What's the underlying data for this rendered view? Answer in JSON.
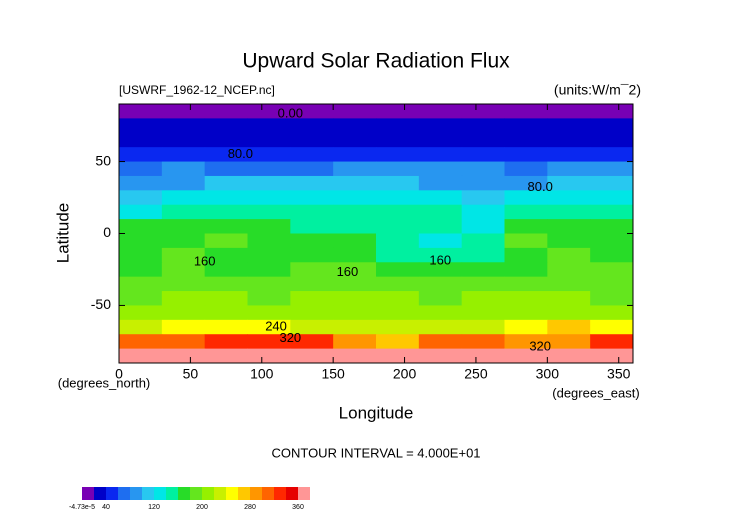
{
  "chart_data": {
    "type": "contour",
    "title": "Upward Solar Radiation Flux",
    "subtitle_left": "[USWRF_1962-12_NCEP.nc]",
    "subtitle_right": "(units:W/m¯2)",
    "x_label": "Longitude",
    "x_unit": "(degrees_east)",
    "y_label": "Latitude",
    "y_unit": "(degrees_north)",
    "footnote": "CONTOUR INTERVAL = 4.000E+01",
    "xlim": [
      0,
      360
    ],
    "xticks": [
      0,
      50,
      100,
      150,
      200,
      250,
      300,
      350
    ],
    "ylim": [
      -90,
      90
    ],
    "yticks": [
      -50,
      0,
      50
    ],
    "x": [
      15,
      45,
      75,
      105,
      135,
      165,
      195,
      225,
      255,
      285,
      315,
      345
    ],
    "y": [
      85,
      75,
      65,
      55,
      45,
      35,
      25,
      15,
      5,
      -5,
      -15,
      -25,
      -35,
      -45,
      -55,
      -65,
      -75,
      -85
    ],
    "z": [
      [
        0,
        0,
        0,
        0,
        0,
        0,
        0,
        0,
        0,
        0,
        0,
        0
      ],
      [
        30,
        30,
        30,
        30,
        30,
        30,
        30,
        30,
        30,
        30,
        30,
        30
      ],
      [
        30,
        30,
        30,
        30,
        30,
        30,
        30,
        30,
        30,
        30,
        30,
        30
      ],
      [
        50,
        50,
        50,
        50,
        50,
        50,
        50,
        50,
        50,
        50,
        50,
        50
      ],
      [
        70,
        80,
        70,
        70,
        70,
        90,
        90,
        90,
        90,
        70,
        80,
        90
      ],
      [
        90,
        90,
        100,
        110,
        110,
        110,
        100,
        90,
        90,
        90,
        100,
        110
      ],
      [
        110,
        120,
        130,
        130,
        120,
        130,
        130,
        120,
        110,
        120,
        130,
        130
      ],
      [
        130,
        140,
        150,
        140,
        150,
        150,
        150,
        140,
        130,
        140,
        150,
        140
      ],
      [
        170,
        160,
        170,
        160,
        150,
        150,
        140,
        140,
        130,
        170,
        160,
        170
      ],
      [
        170,
        170,
        180,
        160,
        160,
        170,
        150,
        130,
        140,
        180,
        170,
        170
      ],
      [
        170,
        180,
        170,
        170,
        170,
        160,
        150,
        140,
        150,
        170,
        180,
        170
      ],
      [
        170,
        180,
        170,
        170,
        180,
        180,
        170,
        170,
        160,
        170,
        180,
        180
      ],
      [
        180,
        190,
        180,
        190,
        190,
        190,
        180,
        190,
        190,
        190,
        190,
        190
      ],
      [
        190,
        200,
        200,
        190,
        200,
        200,
        200,
        190,
        200,
        200,
        200,
        190
      ],
      [
        200,
        210,
        210,
        210,
        210,
        210,
        210,
        200,
        210,
        210,
        200,
        200
      ],
      [
        230,
        240,
        250,
        250,
        230,
        230,
        220,
        230,
        230,
        250,
        260,
        240
      ],
      [
        310,
        310,
        320,
        330,
        330,
        280,
        270,
        300,
        300,
        280,
        290,
        320
      ],
      [
        370,
        370,
        370,
        370,
        370,
        370,
        370,
        370,
        370,
        370,
        370,
        370
      ]
    ],
    "levels": [
      0,
      20,
      40,
      60,
      80,
      100,
      120,
      140,
      160,
      180,
      200,
      220,
      240,
      260,
      280,
      300,
      320,
      340,
      360
    ],
    "colors": [
      "#7800b4",
      "#0000c8",
      "#0a28f0",
      "#1e6ef0",
      "#2896f0",
      "#28c8f0",
      "#00e6e6",
      "#00f0a0",
      "#28dc28",
      "#64e61e",
      "#96f000",
      "#c8f000",
      "#ffff00",
      "#ffc800",
      "#ff9600",
      "#ff6400",
      "#ff2800",
      "#e60000",
      "#ff9696"
    ],
    "colorbar_ticks": [
      {
        "value": -4.73e-05,
        "label": "-4.73e-5"
      },
      40,
      120,
      200,
      280,
      360
    ],
    "annotations": [
      {
        "text": "0.00",
        "x": 120,
        "y": 83
      },
      {
        "text": "80.0",
        "x": 85,
        "y": 55
      },
      {
        "text": "80.0",
        "x": 295,
        "y": 32
      },
      {
        "text": "160",
        "x": 60,
        "y": -20
      },
      {
        "text": "160",
        "x": 160,
        "y": -27
      },
      {
        "text": "160",
        "x": 225,
        "y": -19
      },
      {
        "text": "240",
        "x": 110,
        "y": -65
      },
      {
        "text": "320",
        "x": 120,
        "y": -73
      },
      {
        "text": "320",
        "x": 295,
        "y": -79
      }
    ]
  }
}
